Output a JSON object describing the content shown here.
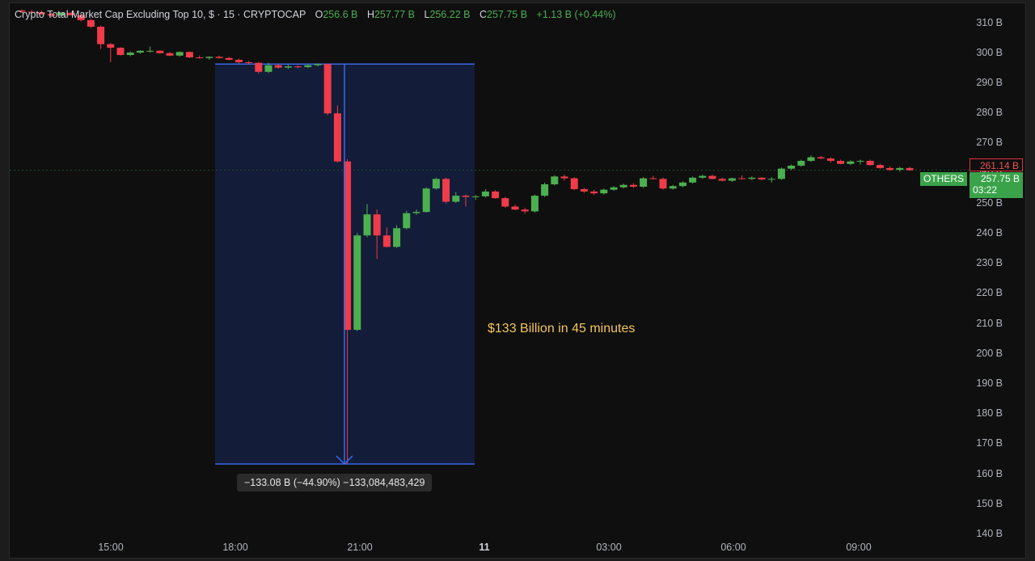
{
  "legend": {
    "title": "Crypto Total Market Cap Excluding Top 10, $ · 15 · CRYPTOCAP",
    "open_label": "O",
    "open": "256.6 B",
    "high_label": "H",
    "high": "257.77 B",
    "low_label": "L",
    "low": "256.22 B",
    "close_label": "C",
    "close": "257.75 B",
    "change": "+1.13 B (+0.44%)"
  },
  "price_tags": {
    "red_value": "261.14 B",
    "green_value": "257.75 B",
    "countdown": "03:22",
    "symbol": "OTHERS"
  },
  "annotation": "$133 Billion in 45 minutes",
  "measure_label": "−133.08 B (−44.90%) −133,084,483,429",
  "colors": {
    "up": "#4caf50",
    "down": "#ef3b4a",
    "measure_fill": "#131c38",
    "measure_line": "#3a66e8",
    "annotation": "#f3c55a"
  },
  "chart_data": {
    "type": "candlestick",
    "ylim": [
      140,
      314
    ],
    "y_ticks": [
      "310 B",
      "300 B",
      "290 B",
      "280 B",
      "270 B",
      "260 B",
      "250 B",
      "240 B",
      "230 B",
      "220 B",
      "210 B",
      "200 B",
      "190 B",
      "180 B",
      "170 B",
      "160 B",
      "150 B",
      "140 B"
    ],
    "x_ticks": [
      "15:00",
      "18:00",
      "21:00",
      "11",
      "03:00",
      "06:00",
      "09:00"
    ],
    "x_ticks_bold": [
      false,
      false,
      false,
      true,
      false,
      false,
      false
    ],
    "measure": {
      "from": 296.4,
      "to": 163.4,
      "change": -133.08,
      "pct": -44.9
    },
    "candles": [
      {
        "o": 314.2,
        "h": 314.6,
        "l": 313.4,
        "c": 313.8
      },
      {
        "o": 313.8,
        "h": 314.4,
        "l": 313.2,
        "c": 313.6
      },
      {
        "o": 313.6,
        "h": 314.2,
        "l": 312.8,
        "c": 313.0
      },
      {
        "o": 313.0,
        "h": 313.5,
        "l": 312.0,
        "c": 312.5
      },
      {
        "o": 312.5,
        "h": 313.6,
        "l": 312.3,
        "c": 313.4
      },
      {
        "o": 313.4,
        "h": 313.8,
        "l": 312.6,
        "c": 312.6
      },
      {
        "o": 312.6,
        "h": 313.0,
        "l": 310.6,
        "c": 311.0
      },
      {
        "o": 311.0,
        "h": 311.4,
        "l": 308.4,
        "c": 308.8
      },
      {
        "o": 308.8,
        "h": 309.2,
        "l": 301.4,
        "c": 303.0
      },
      {
        "o": 303.0,
        "h": 303.4,
        "l": 297.0,
        "c": 301.8
      },
      {
        "o": 301.8,
        "h": 302.0,
        "l": 299.2,
        "c": 299.4
      },
      {
        "o": 299.4,
        "h": 300.6,
        "l": 299.0,
        "c": 300.2
      },
      {
        "o": 300.2,
        "h": 301.0,
        "l": 299.8,
        "c": 300.8
      },
      {
        "o": 300.8,
        "h": 302.2,
        "l": 300.2,
        "c": 300.8
      },
      {
        "o": 300.8,
        "h": 301.0,
        "l": 299.8,
        "c": 300.0
      },
      {
        "o": 300.0,
        "h": 300.4,
        "l": 299.0,
        "c": 299.2
      },
      {
        "o": 299.2,
        "h": 300.6,
        "l": 298.8,
        "c": 300.4
      },
      {
        "o": 300.4,
        "h": 300.6,
        "l": 298.4,
        "c": 298.6
      },
      {
        "o": 298.6,
        "h": 299.2,
        "l": 298.2,
        "c": 298.4
      },
      {
        "o": 298.4,
        "h": 299.0,
        "l": 297.8,
        "c": 298.8
      },
      {
        "o": 298.8,
        "h": 299.2,
        "l": 298.2,
        "c": 298.4
      },
      {
        "o": 298.4,
        "h": 298.8,
        "l": 297.6,
        "c": 297.8
      },
      {
        "o": 297.8,
        "h": 298.2,
        "l": 296.6,
        "c": 297.0
      },
      {
        "o": 297.0,
        "h": 297.4,
        "l": 296.2,
        "c": 296.8
      },
      {
        "o": 296.8,
        "h": 297.0,
        "l": 293.2,
        "c": 293.8
      },
      {
        "o": 293.8,
        "h": 296.8,
        "l": 293.4,
        "c": 296.0
      },
      {
        "o": 296.0,
        "h": 296.4,
        "l": 294.8,
        "c": 295.2
      },
      {
        "o": 295.2,
        "h": 296.2,
        "l": 294.8,
        "c": 295.6
      },
      {
        "o": 295.6,
        "h": 296.0,
        "l": 295.0,
        "c": 295.4
      },
      {
        "o": 295.4,
        "h": 296.2,
        "l": 295.0,
        "c": 296.0
      },
      {
        "o": 296.0,
        "h": 296.6,
        "l": 295.6,
        "c": 296.4
      },
      {
        "o": 296.4,
        "h": 296.6,
        "l": 279.4,
        "c": 280.0
      },
      {
        "o": 280.0,
        "h": 282.6,
        "l": 263.6,
        "c": 264.0
      },
      {
        "o": 264.0,
        "h": 264.8,
        "l": 163.4,
        "c": 208.0
      },
      {
        "o": 208.0,
        "h": 240.2,
        "l": 207.6,
        "c": 239.4
      },
      {
        "o": 239.4,
        "h": 249.8,
        "l": 238.8,
        "c": 246.4
      },
      {
        "o": 246.4,
        "h": 248.0,
        "l": 231.6,
        "c": 239.4
      },
      {
        "o": 239.4,
        "h": 242.0,
        "l": 235.4,
        "c": 235.6
      },
      {
        "o": 235.6,
        "h": 242.8,
        "l": 235.2,
        "c": 241.8
      },
      {
        "o": 241.8,
        "h": 247.6,
        "l": 241.4,
        "c": 246.8
      },
      {
        "o": 246.8,
        "h": 248.0,
        "l": 246.2,
        "c": 247.2
      },
      {
        "o": 247.2,
        "h": 255.4,
        "l": 247.0,
        "c": 255.0
      },
      {
        "o": 255.0,
        "h": 258.6,
        "l": 254.6,
        "c": 258.2
      },
      {
        "o": 258.2,
        "h": 258.6,
        "l": 250.0,
        "c": 250.6
      },
      {
        "o": 250.6,
        "h": 253.8,
        "l": 250.2,
        "c": 252.6
      },
      {
        "o": 252.6,
        "h": 253.0,
        "l": 249.0,
        "c": 252.2
      },
      {
        "o": 252.2,
        "h": 252.8,
        "l": 251.2,
        "c": 252.4
      },
      {
        "o": 252.4,
        "h": 254.8,
        "l": 252.0,
        "c": 254.0
      },
      {
        "o": 254.0,
        "h": 254.4,
        "l": 251.6,
        "c": 251.8
      },
      {
        "o": 251.8,
        "h": 252.2,
        "l": 248.6,
        "c": 249.0
      },
      {
        "o": 249.0,
        "h": 249.6,
        "l": 247.8,
        "c": 248.0
      },
      {
        "o": 248.0,
        "h": 248.6,
        "l": 246.6,
        "c": 247.4
      },
      {
        "o": 247.4,
        "h": 253.0,
        "l": 247.0,
        "c": 252.6
      },
      {
        "o": 252.6,
        "h": 257.0,
        "l": 252.2,
        "c": 256.4
      },
      {
        "o": 256.4,
        "h": 259.4,
        "l": 256.0,
        "c": 259.0
      },
      {
        "o": 259.0,
        "h": 259.6,
        "l": 257.6,
        "c": 258.4
      },
      {
        "o": 258.4,
        "h": 258.8,
        "l": 254.4,
        "c": 254.8
      },
      {
        "o": 254.8,
        "h": 255.2,
        "l": 253.6,
        "c": 254.0
      },
      {
        "o": 254.0,
        "h": 254.6,
        "l": 252.8,
        "c": 253.4
      },
      {
        "o": 253.4,
        "h": 255.0,
        "l": 253.0,
        "c": 254.6
      },
      {
        "o": 254.6,
        "h": 255.8,
        "l": 254.2,
        "c": 255.4
      },
      {
        "o": 255.4,
        "h": 256.6,
        "l": 255.0,
        "c": 256.2
      },
      {
        "o": 256.2,
        "h": 256.8,
        "l": 255.2,
        "c": 255.6
      },
      {
        "o": 255.6,
        "h": 258.8,
        "l": 255.2,
        "c": 258.4
      },
      {
        "o": 258.4,
        "h": 259.2,
        "l": 258.0,
        "c": 258.2
      },
      {
        "o": 258.2,
        "h": 258.6,
        "l": 254.6,
        "c": 255.0
      },
      {
        "o": 255.0,
        "h": 256.2,
        "l": 254.6,
        "c": 255.8
      },
      {
        "o": 255.8,
        "h": 257.4,
        "l": 255.4,
        "c": 257.0
      },
      {
        "o": 257.0,
        "h": 259.0,
        "l": 256.6,
        "c": 258.6
      },
      {
        "o": 258.6,
        "h": 259.6,
        "l": 258.2,
        "c": 259.2
      },
      {
        "o": 259.2,
        "h": 259.6,
        "l": 258.0,
        "c": 258.2
      },
      {
        "o": 258.2,
        "h": 258.6,
        "l": 257.4,
        "c": 257.6
      },
      {
        "o": 257.6,
        "h": 258.6,
        "l": 257.2,
        "c": 258.4
      },
      {
        "o": 258.4,
        "h": 259.4,
        "l": 258.0,
        "c": 258.2
      },
      {
        "o": 258.2,
        "h": 259.0,
        "l": 257.8,
        "c": 258.6
      },
      {
        "o": 258.6,
        "h": 258.8,
        "l": 257.8,
        "c": 258.0
      },
      {
        "o": 258.0,
        "h": 258.8,
        "l": 257.0,
        "c": 258.2
      },
      {
        "o": 258.2,
        "h": 262.0,
        "l": 257.8,
        "c": 261.6
      },
      {
        "o": 261.6,
        "h": 263.0,
        "l": 261.2,
        "c": 262.6
      },
      {
        "o": 262.6,
        "h": 264.6,
        "l": 262.2,
        "c": 264.2
      },
      {
        "o": 264.2,
        "h": 266.0,
        "l": 263.8,
        "c": 265.4
      },
      {
        "o": 265.4,
        "h": 265.8,
        "l": 264.8,
        "c": 265.0
      },
      {
        "o": 265.0,
        "h": 265.4,
        "l": 263.6,
        "c": 264.2
      },
      {
        "o": 264.2,
        "h": 264.6,
        "l": 263.0,
        "c": 263.2
      },
      {
        "o": 263.2,
        "h": 264.4,
        "l": 262.8,
        "c": 264.0
      },
      {
        "o": 264.0,
        "h": 264.6,
        "l": 263.0,
        "c": 264.2
      },
      {
        "o": 264.2,
        "h": 264.6,
        "l": 262.6,
        "c": 262.8
      },
      {
        "o": 262.8,
        "h": 263.2,
        "l": 261.6,
        "c": 261.8
      },
      {
        "o": 261.8,
        "h": 262.4,
        "l": 260.8,
        "c": 261.2
      },
      {
        "o": 261.2,
        "h": 262.2,
        "l": 260.6,
        "c": 261.8
      },
      {
        "o": 261.8,
        "h": 262.2,
        "l": 260.8,
        "c": 261.1
      }
    ]
  }
}
